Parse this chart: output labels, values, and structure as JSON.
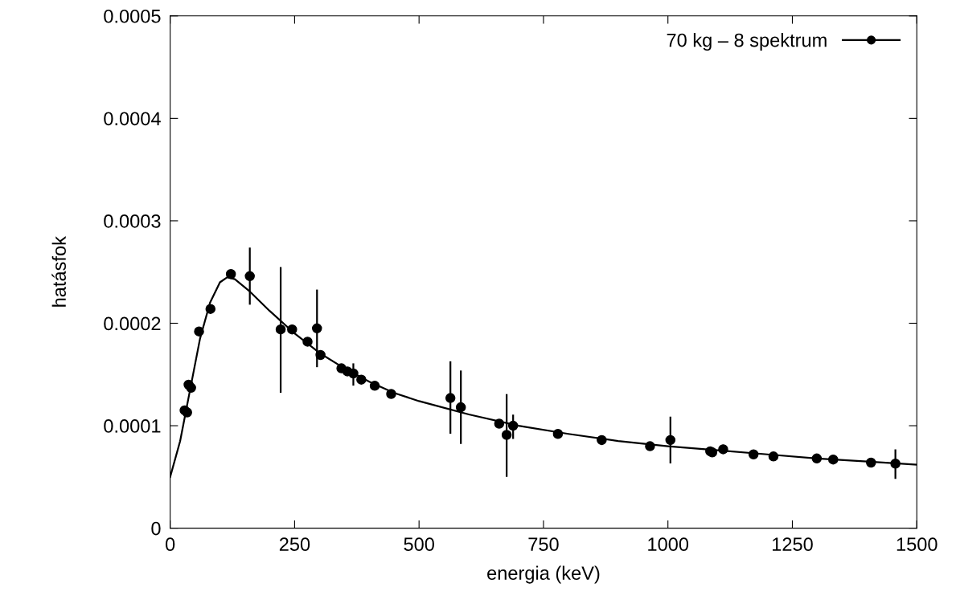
{
  "chart_data": {
    "type": "scatter",
    "xlabel": "energia (keV)",
    "ylabel": "hatásfok",
    "xlim": [
      0,
      1500
    ],
    "xticks": [
      0,
      250,
      500,
      750,
      1000,
      1250,
      1500
    ],
    "ylim": [
      0,
      0.0005
    ],
    "yticks": [
      0,
      0.0001,
      0.0002,
      0.0003,
      0.0004,
      0.0005
    ],
    "grid": false,
    "legend": "top right",
    "series": [
      {
        "name": "70 kg – 8 spektrum",
        "color": "#000000",
        "marker": "circle",
        "x": [
          29,
          34,
          37,
          42,
          58,
          81,
          122,
          160,
          222,
          245,
          276,
          295,
          302,
          344,
          356,
          368,
          384,
          411,
          444,
          563,
          584,
          661,
          676,
          689,
          779,
          867,
          964,
          1005,
          1085,
          1089,
          1111,
          1172,
          1212,
          1299,
          1332,
          1408,
          1457
        ],
        "values": [
          0.000115,
          0.000113,
          0.00014,
          0.000137,
          0.000192,
          0.000214,
          0.000248,
          0.000246,
          0.000194,
          0.000194,
          0.000182,
          0.000195,
          0.000169,
          0.000156,
          0.000153,
          0.000151,
          0.000145,
          0.000139,
          0.000131,
          0.000127,
          0.000118,
          0.000102,
          9.1e-05,
          0.0001,
          9.2e-05,
          8.6e-05,
          8e-05,
          8.6e-05,
          7.5e-05,
          7.4e-05,
          7.7e-05,
          7.2e-05,
          7e-05,
          6.8e-05,
          6.7e-05,
          6.4e-05,
          6.3e-05
        ],
        "errors": [
          null,
          null,
          null,
          null,
          null,
          null,
          null,
          [
            0.000219,
            0.000273
          ],
          [
            0.000133,
            0.000254
          ],
          null,
          null,
          [
            0.000158,
            0.000232
          ],
          null,
          null,
          null,
          [
            0.00014,
            0.00016
          ],
          null,
          null,
          null,
          [
            9.3e-05,
            0.000162
          ],
          [
            8.3e-05,
            0.000153
          ],
          null,
          [
            5.1e-05,
            0.00013
          ],
          [
            8.8e-05,
            0.00011
          ],
          null,
          null,
          null,
          [
            6.4e-05,
            0.000108
          ],
          null,
          null,
          null,
          null,
          null,
          null,
          null,
          null,
          [
            4.9e-05,
            7.6e-05
          ]
        ]
      },
      {
        "color": "#000000",
        "type": "line",
        "marker": "none",
        "x": [
          0,
          20,
          40,
          60,
          80,
          100,
          115,
          130,
          160,
          200,
          250,
          300,
          350,
          400,
          450,
          500,
          600,
          700,
          800,
          900,
          1000,
          1100,
          1200,
          1300,
          1400,
          1500
        ],
        "values": [
          5e-05,
          8.5e-05,
          0.000135,
          0.000185,
          0.00022,
          0.00024,
          0.000245,
          0.000243,
          0.000231,
          0.000212,
          0.00019,
          0.000171,
          0.000156,
          0.000143,
          0.000132,
          0.000124,
          0.000111,
          0.0001,
          9.2e-05,
          8.5e-05,
          8e-05,
          7.6e-05,
          7.2e-05,
          6.8e-05,
          6.5e-05,
          6.2e-05
        ]
      }
    ]
  }
}
